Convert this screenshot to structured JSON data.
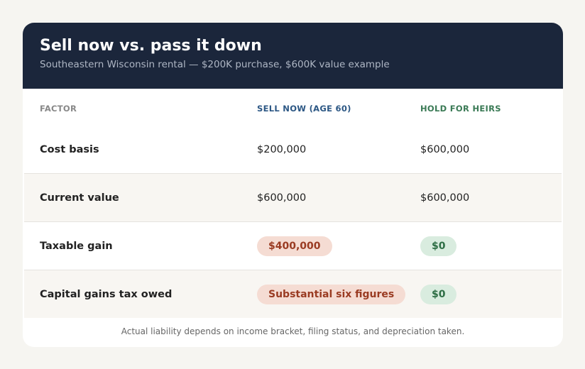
{
  "header": {
    "title": "Sell now vs. pass it down",
    "subtitle": "Southeastern Wisconsin rental — $200K purchase, $600K value example"
  },
  "table": {
    "columns": [
      "FACTOR",
      "SELL NOW (AGE 60)",
      "HOLD FOR HEIRS"
    ],
    "rows": [
      [
        "Cost basis",
        "$200,000",
        "$600,000"
      ],
      [
        "Current value",
        "$600,000",
        "$600,000"
      ],
      [
        "Taxable gain",
        "$400,000",
        "$0"
      ],
      [
        "Capital gains tax owed",
        "Substantial six figures",
        "$0"
      ]
    ]
  },
  "footnote": "Actual liability depends on income bracket, filing status, and depreciation taken."
}
